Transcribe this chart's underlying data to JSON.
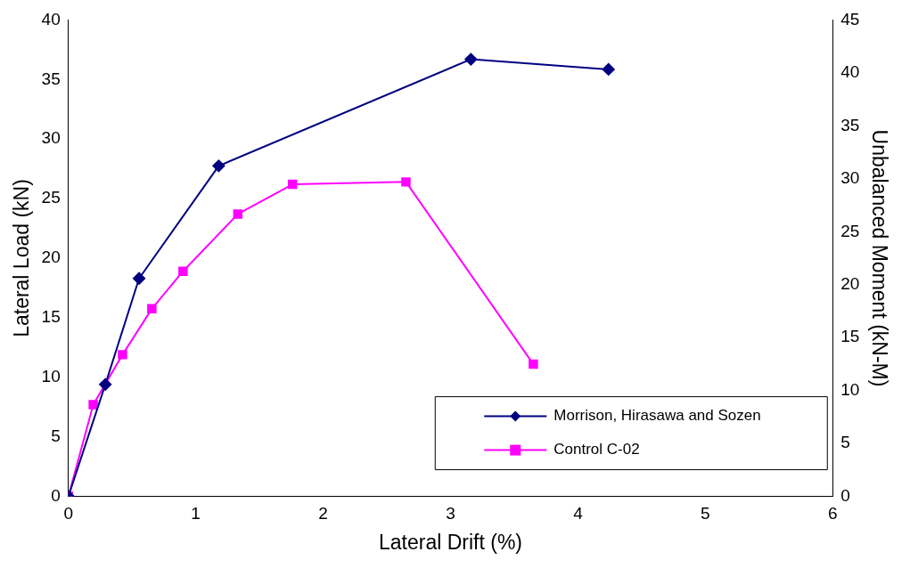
{
  "chart_data": {
    "type": "line",
    "xlabel": "Lateral Drift (%)",
    "ylabel": "Lateral Load (kN)",
    "y2label": "Unbalanced Moment (kN-M)",
    "xlim": [
      0,
      6
    ],
    "xticks": [
      0,
      1,
      2,
      3,
      4,
      5,
      6
    ],
    "ylim": [
      0,
      40
    ],
    "yticks": [
      0,
      5,
      10,
      15,
      20,
      25,
      30,
      35,
      40
    ],
    "y2lim": [
      0,
      45
    ],
    "y2ticks": [
      0,
      5,
      10,
      15,
      20,
      25,
      30,
      35,
      40,
      45
    ],
    "grid": false,
    "legend": "bottom right",
    "line_style": "solid",
    "series": [
      {
        "name": "Morrison, Hirasawa and Sozen",
        "color": "#000080",
        "marker": "diamond",
        "x": [
          0,
          0.29,
          0.555,
          1.18,
          3.16,
          4.24
        ],
        "values": [
          0,
          9.4,
          18.3,
          27.75,
          36.7,
          35.85
        ]
      },
      {
        "name": "Control C-02",
        "color": "#ff00ff",
        "marker": "square",
        "x": [
          0,
          0.195,
          0.425,
          0.655,
          0.9,
          1.33,
          1.76,
          2.65,
          3.65
        ],
        "values": [
          0,
          7.7,
          11.9,
          15.75,
          18.9,
          23.7,
          26.2,
          26.4,
          11.1
        ]
      }
    ]
  }
}
